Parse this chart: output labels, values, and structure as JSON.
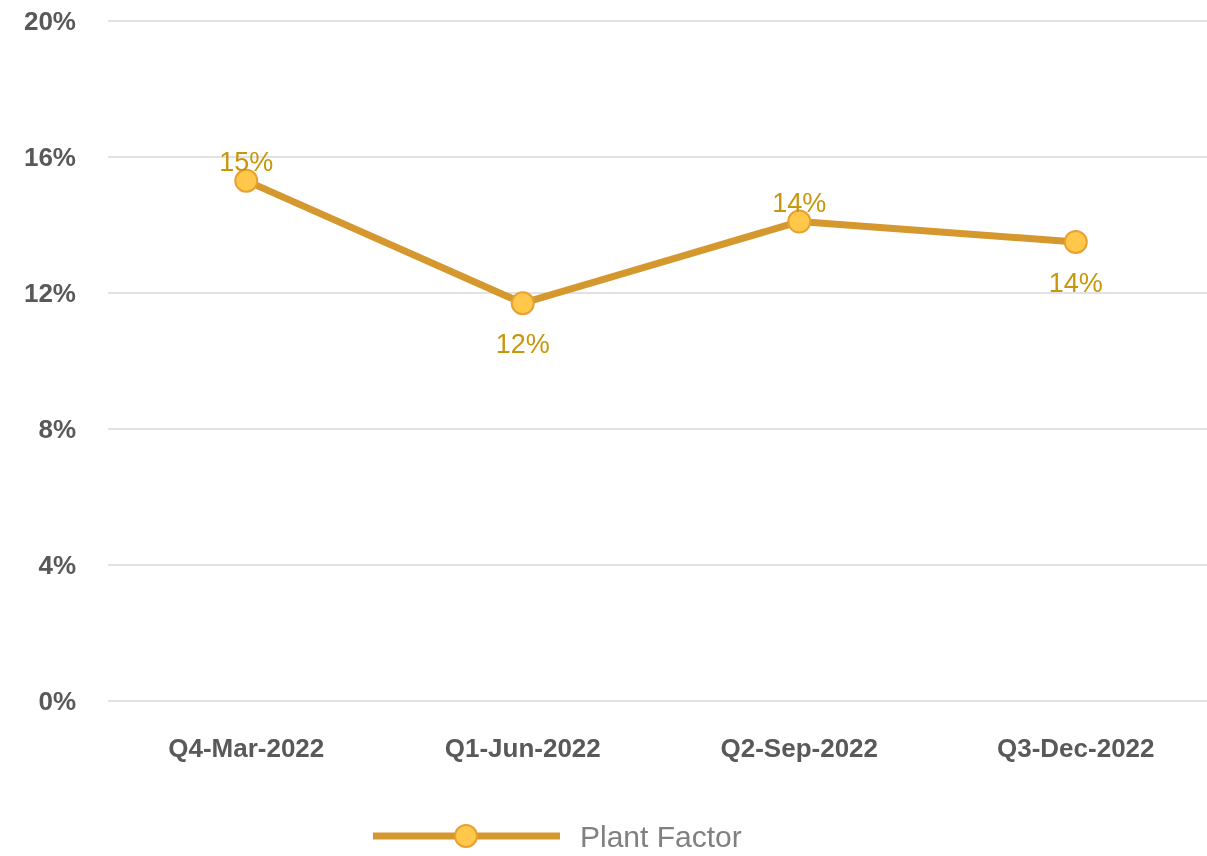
{
  "chart_data": {
    "type": "line",
    "categories": [
      "Q4-Mar-2022",
      "Q1-Jun-2022",
      "Q2-Sep-2022",
      "Q3-Dec-2022"
    ],
    "series": [
      {
        "name": "Plant Factor",
        "color": "#d4982e",
        "values": [
          15.3,
          11.7,
          14.1,
          13.5
        ],
        "value_labels": [
          "15%",
          "12%",
          "14%",
          "14%"
        ]
      }
    ],
    "ylim": [
      0,
      20
    ],
    "yticks": [
      {
        "value": 0,
        "label": "0%"
      },
      {
        "value": 4,
        "label": "4%"
      },
      {
        "value": 8,
        "label": "8%"
      },
      {
        "value": 12,
        "label": "12%"
      },
      {
        "value": 16,
        "label": "16%"
      },
      {
        "value": 20,
        "label": "20%"
      }
    ],
    "grid": "y",
    "legend": "bottom",
    "marker": "circle",
    "line_style": "solid"
  }
}
